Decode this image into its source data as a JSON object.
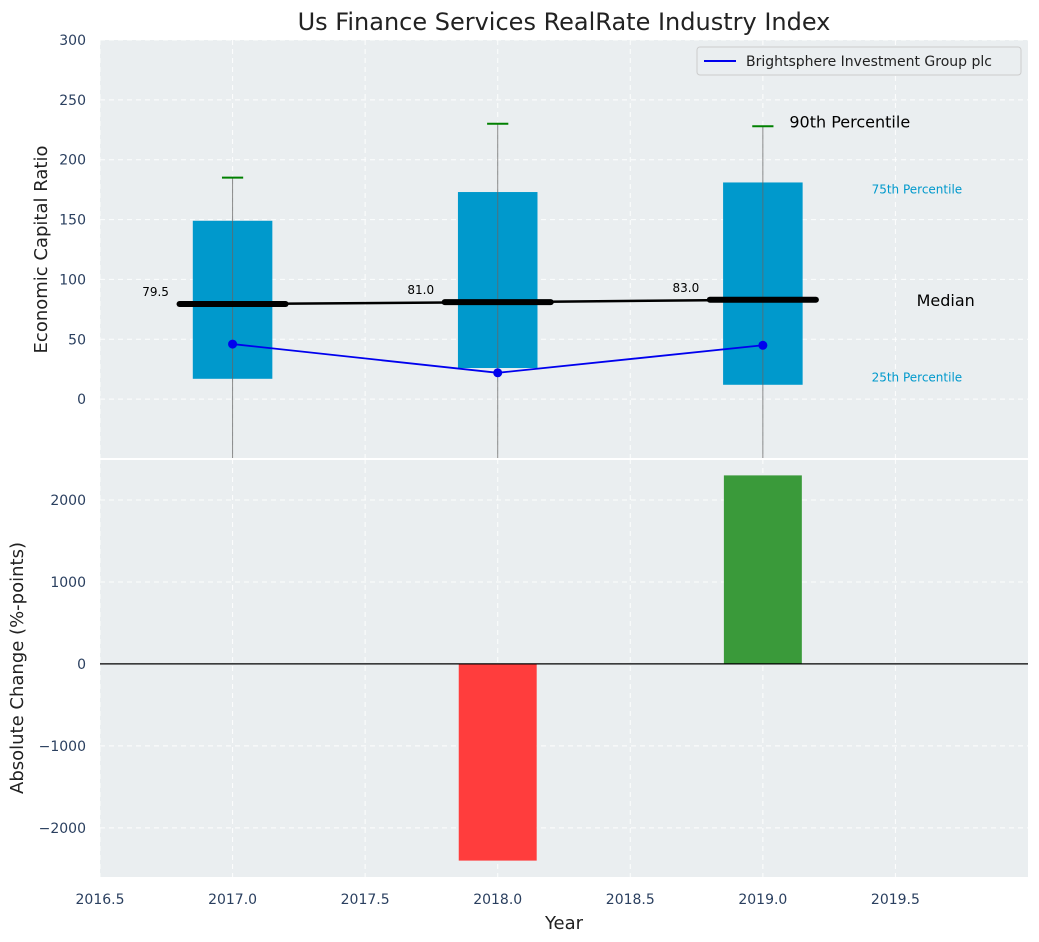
{
  "chart_data": [
    {
      "type": "box-percentile",
      "title": "Us Finance Services RealRate Industry Index",
      "ylabel": "Economic Capital Ratio",
      "xlim": [
        2016.5,
        2020.0
      ],
      "ylim": [
        -50,
        300
      ],
      "yticks": [
        "0",
        "50",
        "100",
        "150",
        "200",
        "250",
        "300"
      ],
      "ytick_values": [
        0,
        50,
        100,
        150,
        200,
        250,
        300
      ],
      "years": [
        2017,
        2018,
        2019
      ],
      "percentile_25": [
        17,
        26,
        12
      ],
      "percentile_75": [
        149,
        173,
        181
      ],
      "percentile_90": [
        185,
        230,
        228
      ],
      "median": [
        79.5,
        81.0,
        83.0
      ],
      "median_labels": [
        "79.5",
        "81.0",
        "83.0"
      ],
      "company_values": [
        46,
        22,
        45
      ],
      "legend": {
        "label": "Brightsphere Investment Group plc",
        "position": "top-right"
      },
      "annotations": {
        "p90": "90th Percentile",
        "p75": "75th Percentile",
        "median": "Median",
        "p25": "25th Percentile"
      }
    },
    {
      "type": "bar",
      "ylabel": "Absolute Change (%-points)",
      "xlabel": "Year",
      "xlim": [
        2016.5,
        2020.0
      ],
      "ylim": [
        -2600,
        2500
      ],
      "yticks": [
        "−2000",
        "−1000",
        "0",
        "1000",
        "2000"
      ],
      "ytick_values": [
        -2000,
        -1000,
        0,
        1000,
        2000
      ],
      "xticks": [
        "2016.5",
        "2017.0",
        "2017.5",
        "2018.0",
        "2018.5",
        "2019.0",
        "2019.5"
      ],
      "xtick_values": [
        2016.5,
        2017.0,
        2017.5,
        2018.0,
        2018.5,
        2019.0,
        2019.5
      ],
      "years": [
        2018,
        2019
      ],
      "values": [
        -2400,
        2300
      ],
      "colors": [
        "#ff3d3d",
        "#3a9a3a"
      ]
    }
  ],
  "colors": {
    "plot_bg": "#eaeef0",
    "box": "#0099cc",
    "company_line": "#0000ee",
    "median": "#000000",
    "whisker": "#008000",
    "annotation_blue": "#0099cc"
  }
}
